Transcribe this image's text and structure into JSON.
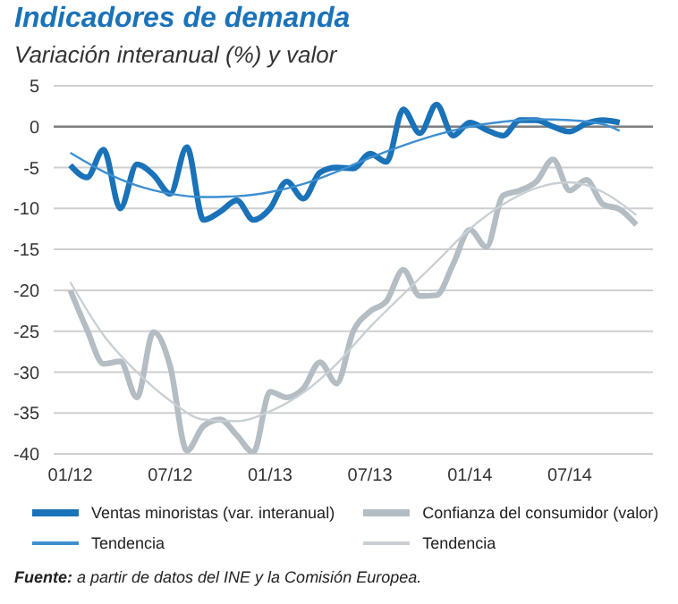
{
  "chart_data": {
    "type": "line",
    "title": "Indicadores de demanda",
    "subtitle": "Variación interanual (%) y valor",
    "x": [
      "2012-01",
      "2012-02",
      "2012-03",
      "2012-04",
      "2012-05",
      "2012-06",
      "2012-07",
      "2012-08",
      "2012-09",
      "2012-10",
      "2012-11",
      "2012-12",
      "2013-01",
      "2013-02",
      "2013-03",
      "2013-04",
      "2013-05",
      "2013-06",
      "2013-07",
      "2013-08",
      "2013-09",
      "2013-10",
      "2013-11",
      "2013-12",
      "2014-01",
      "2014-02",
      "2014-03",
      "2014-04",
      "2014-05",
      "2014-06",
      "2014-07",
      "2014-08",
      "2014-09",
      "2014-10",
      "2014-11"
    ],
    "series": [
      {
        "name": "Ventas minoristas (var. interanual)",
        "color": "#1a72b8",
        "values": [
          -4.7,
          -6.2,
          -2.8,
          -10,
          -4.6,
          -5.9,
          -8.2,
          -2.5,
          -11.4,
          -10.4,
          -9,
          -11.4,
          -10,
          -6.7,
          -8.8,
          -5.6,
          -5,
          -5.1,
          -3.3,
          -4.3,
          2.1,
          -0.8,
          2.7,
          -1.1,
          0.5,
          -0.4,
          -1.1,
          0.8,
          0.8,
          0,
          -0.6,
          0.4,
          0.8,
          0.5,
          null
        ]
      },
      {
        "name": "Tendencia",
        "color": "#3d8fd0",
        "x": [
          "2012-01",
          "2012-03",
          "2012-05",
          "2012-07",
          "2012-09",
          "2012-11",
          "2013-01",
          "2013-03",
          "2013-05",
          "2013-07",
          "2013-09",
          "2013-11",
          "2014-01",
          "2014-03",
          "2014-05",
          "2014-07",
          "2014-09",
          "2014-10"
        ],
        "values": [
          -3.2,
          -5.5,
          -7.2,
          -8.2,
          -8.6,
          -8.5,
          -8,
          -7,
          -5.5,
          -3.8,
          -2.3,
          -1,
          0,
          0.6,
          0.9,
          0.8,
          0.3,
          -0.5
        ]
      },
      {
        "name": "Confianza del consumidor (valor)",
        "color": "#b3bdc3",
        "values": [
          -20,
          -24.8,
          -29,
          -28.7,
          -33.1,
          -25.1,
          -29.3,
          -39.6,
          -36.6,
          -35.8,
          -37.7,
          -39.8,
          -32.4,
          -33.1,
          -32,
          -28.8,
          -31.4,
          -25,
          -22.6,
          -21.3,
          -17.5,
          -20.7,
          -20.6,
          -16.8,
          -12.6,
          -14.7,
          -8.4,
          -7.8,
          -6.7,
          -4,
          -7.8,
          -6.5,
          -9.5,
          -10.1,
          -12
        ]
      },
      {
        "name": "Tendencia",
        "color": "#c8d0d5",
        "x": [
          "2012-01",
          "2012-03",
          "2012-05",
          "2012-07",
          "2012-09",
          "2012-11",
          "2013-01",
          "2013-03",
          "2013-05",
          "2013-07",
          "2013-09",
          "2013-11",
          "2014-01",
          "2014-03",
          "2014-05",
          "2014-07",
          "2014-09",
          "2014-11"
        ],
        "values": [
          -19,
          -25.5,
          -30,
          -33.5,
          -35.8,
          -36,
          -34.8,
          -32.5,
          -29,
          -24.5,
          -20.5,
          -16.5,
          -12.5,
          -9.5,
          -7.5,
          -6.8,
          -8,
          -10.8
        ]
      }
    ],
    "xlim": [
      "2011-12",
      "2014-12"
    ],
    "xticks": [
      {
        "value": "2012-01",
        "label": "01/12"
      },
      {
        "value": "2012-07",
        "label": "07/12"
      },
      {
        "value": "2013-01",
        "label": "01/13"
      },
      {
        "value": "2013-07",
        "label": "07/13"
      },
      {
        "value": "2014-01",
        "label": "01/14"
      },
      {
        "value": "2014-07",
        "label": "07/14"
      }
    ],
    "ylim": [
      -40,
      5
    ],
    "yticks": [
      -40,
      -35,
      -30,
      -25,
      -20,
      -15,
      -10,
      -5,
      0,
      5
    ],
    "ref_lines": [
      {
        "axis": "y",
        "value": 0,
        "color": "#7f7f7f"
      }
    ],
    "grid": "y",
    "legend": "bottom",
    "marker": "none",
    "line_style": "solid",
    "annotations": [
      "Fuente: a partir de datos del INE y la Comisión Europea."
    ]
  }
}
